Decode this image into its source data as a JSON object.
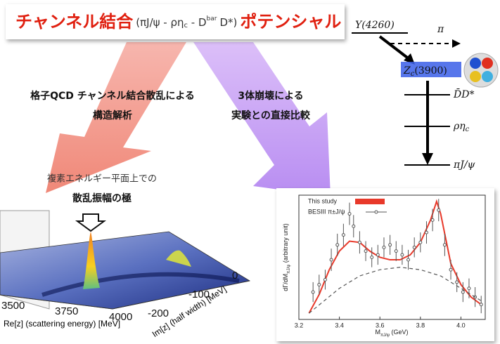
{
  "title": {
    "lead": "チャンネル結合",
    "channels": [
      "(πJ/ψ - ρη",
      "c",
      " - D",
      "bar",
      "D*)"
    ],
    "tail": "ポテンシャル"
  },
  "left_arrow": {
    "line1": "格子QCD チャンネル結合散乱による",
    "line2": "構造解析"
  },
  "right_arrow": {
    "line1": "3体崩壊による",
    "line2": "実験との直接比較"
  },
  "pole_note": {
    "line1": "複素エネルギー平面上での",
    "line2": "散乱振幅の極"
  },
  "decay": {
    "parent": "Y(4260)",
    "pion": "π",
    "resonance": [
      "Z",
      "c",
      "(3900)"
    ],
    "channels": [
      "D̄D*",
      "ρη",
      "πJ/ψ"
    ],
    "channel_sub": "c"
  },
  "surface": {
    "re_ticks": [
      3500,
      3750,
      4000
    ],
    "im_ticks": [
      0,
      -100,
      -200
    ],
    "re_label": "Re[z] (scattering energy) [MeV]",
    "im_label": "Im[z] (half width) [MeV]"
  },
  "chart_data": {
    "type": "line",
    "xlabel": [
      "M",
      "πJ/ψ",
      " (GeV)"
    ],
    "ylabel": [
      "dΓ/dM",
      "πJ/ψ",
      " (arbitrary unit)"
    ],
    "xlim": [
      3.2,
      4.12
    ],
    "xticks": [
      3.2,
      3.4,
      3.6,
      3.8,
      {
        "value": 4,
        "label": "4.0"
      }
    ],
    "ylim": [
      0,
      100
    ],
    "series": [
      {
        "name": "This study",
        "color": "#e8392a",
        "x": [
          3.25,
          3.3,
          3.35,
          3.4,
          3.45,
          3.5,
          3.55,
          3.6,
          3.65,
          3.7,
          3.75,
          3.8,
          3.85,
          3.88,
          3.9,
          3.95,
          4.0,
          4.05,
          4.1
        ],
        "values": [
          5,
          20,
          40,
          55,
          63,
          62,
          55,
          50,
          48,
          48,
          52,
          62,
          80,
          95,
          85,
          45,
          28,
          18,
          12
        ]
      },
      {
        "name": "BESIII π±J/ψ",
        "color": "#555555",
        "x": [
          3.27,
          3.3,
          3.33,
          3.36,
          3.39,
          3.42,
          3.45,
          3.47,
          3.5,
          3.53,
          3.56,
          3.59,
          3.62,
          3.65,
          3.68,
          3.71,
          3.74,
          3.77,
          3.8,
          3.83,
          3.86,
          3.89,
          3.92,
          3.95,
          3.98,
          4.01,
          4.04,
          4.07,
          4.1
        ],
        "values": [
          22,
          28,
          32,
          48,
          60,
          68,
          85,
          75,
          62,
          55,
          50,
          52,
          58,
          60,
          55,
          52,
          48,
          58,
          62,
          70,
          80,
          88,
          60,
          40,
          30,
          22,
          25,
          18,
          12
        ],
        "errors": [
          8,
          8,
          8,
          9,
          9,
          9,
          9,
          9,
          9,
          8,
          8,
          8,
          8,
          8,
          8,
          8,
          8,
          8,
          8,
          9,
          9,
          9,
          9,
          8,
          8,
          8,
          8,
          8,
          7
        ]
      },
      {
        "color": "#555555",
        "dash": true,
        "x": [
          3.25,
          3.4,
          3.5,
          3.6,
          3.7,
          3.8,
          3.9,
          4.0,
          4.1
        ],
        "values": [
          5,
          25,
          35,
          40,
          42,
          40,
          35,
          25,
          15
        ]
      }
    ]
  }
}
